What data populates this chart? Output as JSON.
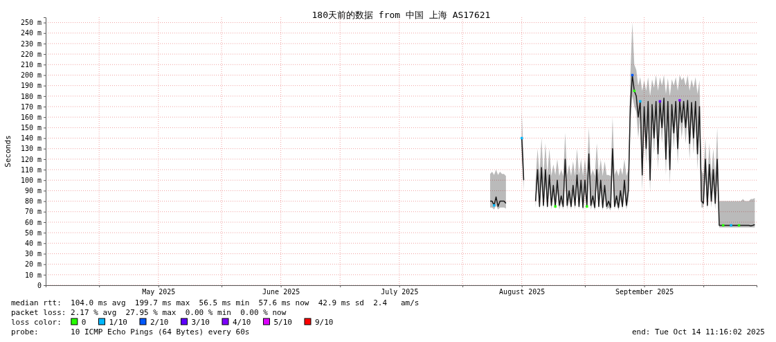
{
  "chart_data": {
    "type": "line",
    "title": "180天前的数据 from 中国 上海 AS17621",
    "ylabel": "Seconds",
    "legend_title": "loss color:",
    "legend": "bottom",
    "grid": true,
    "line_style": "solid",
    "xlim": [
      "2025-04-17T11:16",
      "2025-10-14T11:16"
    ],
    "xticks": [
      {
        "value": "2025-05-01",
        "label": null
      },
      {
        "value": "2025-05-16",
        "label": "May 2025"
      },
      {
        "value": "2025-06-01",
        "label": null
      },
      {
        "value": "2025-06-16",
        "label": "June 2025"
      },
      {
        "value": "2025-07-01",
        "label": null
      },
      {
        "value": "2025-07-16",
        "label": "July 2025"
      },
      {
        "value": "2025-08-01",
        "label": null
      },
      {
        "value": "2025-08-16",
        "label": "August 2025"
      },
      {
        "value": "2025-09-01",
        "label": null
      },
      {
        "value": "2025-09-16",
        "label": "September 2025"
      },
      {
        "value": "2025-10-01",
        "label": null
      }
    ],
    "ylim": [
      0,
      255
    ],
    "yticks": [
      {
        "value": 0,
        "label": "0"
      },
      {
        "value": 10,
        "label": "10 m"
      },
      {
        "value": 20,
        "label": "20 m"
      },
      {
        "value": 30,
        "label": "30 m"
      },
      {
        "value": 40,
        "label": "40 m"
      },
      {
        "value": 50,
        "label": "50 m"
      },
      {
        "value": 60,
        "label": "60 m"
      },
      {
        "value": 70,
        "label": "70 m"
      },
      {
        "value": 80,
        "label": "80 m"
      },
      {
        "value": 90,
        "label": "90 m"
      },
      {
        "value": 100,
        "label": "100 m"
      },
      {
        "value": 110,
        "label": "110 m"
      },
      {
        "value": 120,
        "label": "120 m"
      },
      {
        "value": 130,
        "label": "130 m"
      },
      {
        "value": 140,
        "label": "140 m"
      },
      {
        "value": 150,
        "label": "150 m"
      },
      {
        "value": 160,
        "label": "160 m"
      },
      {
        "value": 170,
        "label": "170 m"
      },
      {
        "value": 180,
        "label": "180 m"
      },
      {
        "value": 190,
        "label": "190 m"
      },
      {
        "value": 200,
        "label": "200 m"
      },
      {
        "value": 210,
        "label": "210 m"
      },
      {
        "value": 220,
        "label": "220 m"
      },
      {
        "value": 230,
        "label": "230 m"
      },
      {
        "value": 240,
        "label": "240 m"
      },
      {
        "value": 250,
        "label": "250 m"
      }
    ],
    "annotations": [
      "median rtt:  104.0 ms avg  199.7 ms max  56.5 ms min  57.6 ms now  42.9 ms sd  2.4   am/s",
      "packet loss: 2.17 % avg  27.95 % max  0.00 % min  0.00 % now",
      "probe:       10 ICMP Echo Pings (64 Bytes) every 60s",
      "end: Tue Oct 14 11:16:02 2025"
    ],
    "series": [
      {
        "color": "#1a1a1a",
        "x": [
          "2025-08-08T00:00",
          "2025-08-08T12:00",
          "2025-08-09T00:00",
          "2025-08-09T12:00",
          "2025-08-10T00:00",
          "2025-08-10T12:00",
          "2025-08-11T00:00",
          "2025-08-11T12:00",
          "2025-08-12T00:00",
          "2025-08-12T12:00",
          "2025-08-13T00:00",
          "2025-08-13T12:00",
          "2025-08-14T00:00",
          "2025-08-14T12:00",
          "2025-08-15T00:00",
          "2025-08-15T12:00",
          "2025-08-16T00:00",
          "2025-08-16T12:00",
          "2025-08-17T00:00",
          "2025-08-17T12:00",
          "2025-08-18T00:00",
          "2025-08-18T12:00",
          "2025-08-19T00:00",
          "2025-08-19T12:00",
          "2025-08-20T00:00",
          "2025-08-20T12:00",
          "2025-08-21T00:00",
          "2025-08-21T12:00",
          "2025-08-22T00:00",
          "2025-08-22T12:00",
          "2025-08-23T00:00",
          "2025-08-23T12:00",
          "2025-08-24T00:00",
          "2025-08-24T12:00",
          "2025-08-25T00:00",
          "2025-08-25T12:00",
          "2025-08-26T00:00",
          "2025-08-26T12:00",
          "2025-08-27T00:00",
          "2025-08-27T12:00",
          "2025-08-28T00:00",
          "2025-08-28T12:00",
          "2025-08-29T00:00",
          "2025-08-29T12:00",
          "2025-08-30T00:00",
          "2025-08-30T12:00",
          "2025-08-31T00:00",
          "2025-08-31T12:00",
          "2025-09-01T00:00",
          "2025-09-01T12:00",
          "2025-09-02T00:00",
          "2025-09-02T12:00",
          "2025-09-03T00:00",
          "2025-09-03T12:00",
          "2025-09-04T00:00",
          "2025-09-04T12:00",
          "2025-09-05T00:00",
          "2025-09-05T12:00",
          "2025-09-06T00:00",
          "2025-09-06T12:00",
          "2025-09-07T00:00",
          "2025-09-07T12:00",
          "2025-09-08T00:00",
          "2025-09-08T12:00",
          "2025-09-09T00:00",
          "2025-09-09T12:00",
          "2025-09-10T00:00",
          "2025-09-10T12:00",
          "2025-09-11T00:00",
          "2025-09-11T12:00",
          "2025-09-12T00:00",
          "2025-09-12T12:00",
          "2025-09-13T00:00",
          "2025-09-13T12:00",
          "2025-09-14T00:00",
          "2025-09-14T12:00",
          "2025-09-15T00:00",
          "2025-09-15T12:00",
          "2025-09-16T00:00",
          "2025-09-16T12:00",
          "2025-09-17T00:00",
          "2025-09-17T12:00",
          "2025-09-18T00:00",
          "2025-09-18T12:00",
          "2025-09-19T00:00",
          "2025-09-19T12:00",
          "2025-09-20T00:00",
          "2025-09-20T12:00",
          "2025-09-21T00:00",
          "2025-09-21T12:00",
          "2025-09-22T00:00",
          "2025-09-22T12:00",
          "2025-09-23T00:00",
          "2025-09-23T12:00",
          "2025-09-24T00:00",
          "2025-09-24T12:00",
          "2025-09-25T00:00",
          "2025-09-25T12:00",
          "2025-09-26T00:00",
          "2025-09-26T12:00",
          "2025-09-27T00:00",
          "2025-09-27T12:00",
          "2025-09-28T00:00",
          "2025-09-28T12:00",
          "2025-09-29T00:00",
          "2025-09-29T12:00",
          "2025-09-30T00:00",
          "2025-09-30T12:00",
          "2025-10-01T00:00",
          "2025-10-01T12:00",
          "2025-10-02T00:00",
          "2025-10-02T12:00",
          "2025-10-03T00:00",
          "2025-10-03T12:00",
          "2025-10-04T00:00",
          "2025-10-04T12:00",
          "2025-10-05T00:00",
          "2025-10-05T12:00",
          "2025-10-06T00:00",
          "2025-10-06T12:00",
          "2025-10-07T00:00",
          "2025-10-07T12:00",
          "2025-10-08T00:00",
          "2025-10-08T12:00",
          "2025-10-09T00:00",
          "2025-10-09T12:00",
          "2025-10-10T00:00",
          "2025-10-10T12:00",
          "2025-10-11T00:00",
          "2025-10-11T12:00",
          "2025-10-12T00:00",
          "2025-10-12T12:00",
          "2025-10-13T00:00",
          "2025-10-13T12:00",
          "2025-10-14T00:00"
        ],
        "values": [
          80,
          80,
          76,
          84,
          75,
          80,
          80,
          80,
          78,
          null,
          null,
          null,
          null,
          null,
          null,
          null,
          140,
          100,
          null,
          null,
          null,
          null,
          null,
          80,
          110,
          75,
          112,
          76,
          110,
          75,
          105,
          76,
          95,
          75,
          100,
          76,
          85,
          75,
          120,
          76,
          90,
          75,
          95,
          76,
          105,
          75,
          100,
          74,
          100,
          75,
          125,
          76,
          85,
          74,
          110,
          75,
          100,
          74,
          95,
          75,
          80,
          74,
          130,
          75,
          85,
          74,
          90,
          75,
          100,
          76,
          90,
          170,
          200,
          185,
          180,
          160,
          175,
          105,
          170,
          130,
          175,
          100,
          172,
          140,
          175,
          125,
          175,
          150,
          178,
          120,
          175,
          110,
          172,
          145,
          175,
          130,
          176,
          155,
          175,
          150,
          176,
          135,
          174,
          140,
          175,
          125,
          170,
          80,
          78,
          120,
          76,
          115,
          80,
          110,
          78,
          120,
          57,
          57,
          57,
          57,
          57,
          57,
          57,
          57,
          57,
          57,
          57,
          57,
          57,
          57,
          57,
          57,
          56.5,
          57,
          57.6
        ],
        "lower": [
          74,
          74,
          72,
          76,
          72,
          74,
          74,
          74,
          73,
          null,
          null,
          null,
          null,
          null,
          null,
          null,
          125,
          90,
          null,
          null,
          null,
          null,
          null,
          74,
          98,
          72,
          100,
          72,
          98,
          72,
          94,
          72,
          86,
          72,
          90,
          72,
          78,
          72,
          108,
          72,
          82,
          72,
          86,
          72,
          94,
          72,
          90,
          71,
          90,
          72,
          112,
          72,
          78,
          71,
          98,
          72,
          90,
          71,
          86,
          72,
          74,
          71,
          118,
          72,
          78,
          71,
          82,
          72,
          90,
          72,
          80,
          155,
          180,
          170,
          165,
          140,
          160,
          90,
          155,
          115,
          160,
          88,
          158,
          125,
          160,
          110,
          160,
          135,
          162,
          105,
          160,
          96,
          158,
          130,
          160,
          115,
          160,
          140,
          160,
          135,
          160,
          120,
          158,
          125,
          160,
          110,
          155,
          74,
          74,
          105,
          72,
          100,
          74,
          96,
          72,
          105,
          55,
          55,
          55,
          55,
          55,
          55,
          55,
          55,
          55,
          55,
          55,
          55,
          55,
          55,
          55,
          55,
          55,
          55,
          55
        ],
        "upper": [
          106,
          108,
          105,
          110,
          105,
          108,
          106,
          106,
          104,
          null,
          null,
          null,
          null,
          null,
          null,
          null,
          165,
          120,
          null,
          null,
          null,
          null,
          null,
          100,
          130,
          105,
          140,
          104,
          135,
          105,
          130,
          104,
          115,
          105,
          120,
          104,
          110,
          104,
          145,
          105,
          115,
          104,
          118,
          104,
          130,
          105,
          120,
          104,
          120,
          105,
          150,
          104,
          110,
          104,
          135,
          105,
          120,
          104,
          118,
          105,
          105,
          104,
          160,
          105,
          110,
          104,
          112,
          105,
          120,
          104,
          110,
          200,
          250,
          210,
          205,
          190,
          198,
          185,
          195,
          185,
          198,
          180,
          196,
          188,
          200,
          185,
          198,
          190,
          200,
          182,
          197,
          180,
          196,
          190,
          198,
          185,
          200,
          195,
          198,
          190,
          200,
          185,
          196,
          188,
          198,
          182,
          195,
          110,
          105,
          140,
          100,
          135,
          105,
          130,
          104,
          150,
          80,
          80,
          80,
          80,
          80,
          80,
          80,
          80,
          80,
          80,
          80,
          80,
          82,
          80,
          80,
          80,
          82,
          82,
          83
        ]
      },
      {
        "type": "scatter",
        "name": "0",
        "color": "#26ff00",
        "x": [
          "2025-08-24T12:00",
          "2025-09-01T12:00",
          "2025-09-13T12:00",
          "2025-10-06T00:00",
          "2025-10-10T00:00"
        ],
        "values": [
          75,
          75,
          185,
          57,
          57
        ]
      },
      {
        "type": "scatter",
        "name": "1/10",
        "color": "#00b8ff",
        "x": [
          "2025-08-09T00:00",
          "2025-08-16T00:00",
          "2025-09-15T00:00",
          "2025-10-08T00:00"
        ],
        "values": [
          76,
          140,
          175,
          57
        ]
      },
      {
        "type": "scatter",
        "name": "2/10",
        "color": "#0059ff",
        "x": [
          "2025-09-13T00:00"
        ],
        "values": [
          200
        ]
      },
      {
        "type": "scatter",
        "name": "3/10",
        "color": "#5e00ff",
        "x": [
          "2025-09-20T00:00"
        ],
        "values": [
          175
        ]
      },
      {
        "type": "scatter",
        "name": "4/10",
        "color": "#7e00ff",
        "x": [
          "2025-09-25T00:00"
        ],
        "values": [
          176
        ]
      },
      {
        "type": "scatter",
        "name": "5/10",
        "color": "#dd00ff"
      },
      {
        "type": "scatter",
        "name": "9/10",
        "color": "#ff0000"
      }
    ]
  }
}
